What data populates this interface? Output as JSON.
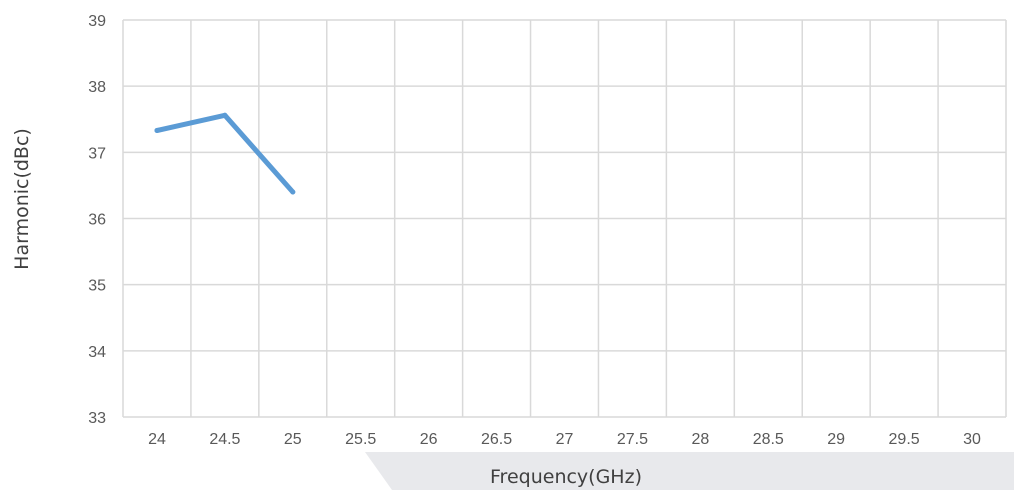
{
  "chart_data": {
    "type": "line",
    "title": "",
    "xlabel": "Frequency(GHz)",
    "ylabel": "Harmonic(dBc)",
    "x_categories": [
      "24",
      "24.5",
      "25",
      "25.5",
      "26",
      "26.5",
      "27",
      "27.5",
      "28",
      "28.5",
      "29",
      "29.5",
      "30"
    ],
    "y_ticks": [
      "33",
      "34",
      "35",
      "36",
      "37",
      "38",
      "39"
    ],
    "ylim": [
      33,
      39
    ],
    "grid": true,
    "series": [
      {
        "color": "#5b9bd5",
        "x": [
          24,
          24.5,
          25
        ],
        "y": [
          37.33,
          37.56,
          36.4
        ]
      }
    ]
  }
}
